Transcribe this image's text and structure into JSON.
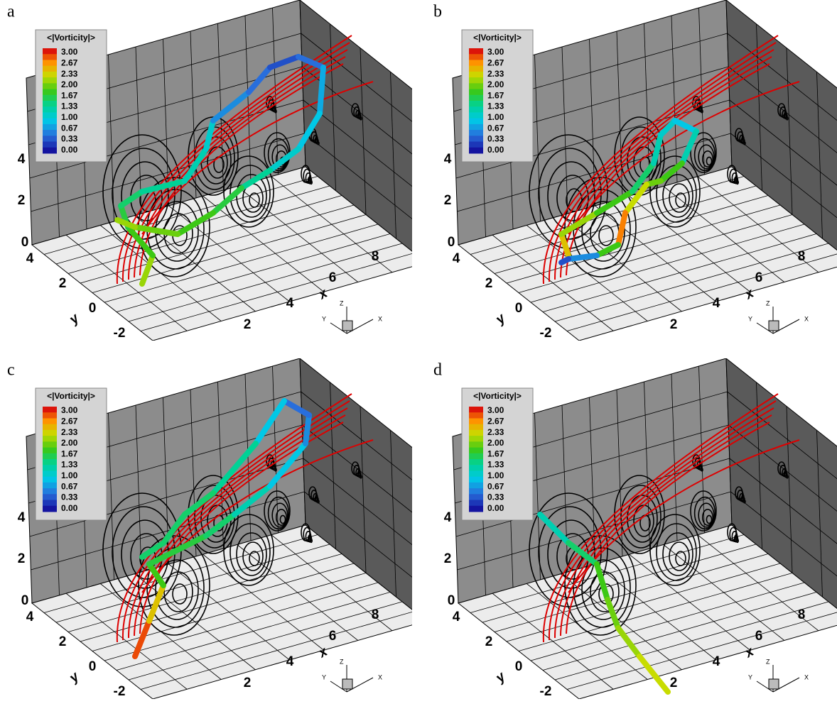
{
  "panels": [
    {
      "label": "a"
    },
    {
      "label": "b"
    },
    {
      "label": "c"
    },
    {
      "label": "d"
    }
  ],
  "legend": {
    "title": "<|Vorticity|>",
    "levels": [
      "3.00",
      "2.67",
      "2.33",
      "2.00",
      "1.67",
      "1.33",
      "1.00",
      "0.67",
      "0.33",
      "0.00"
    ]
  },
  "axes": {
    "x_label": "x",
    "y_label": "y",
    "z_ticks": [
      "0",
      "2",
      "4"
    ],
    "y_ticks": [
      "4",
      "2",
      "0",
      "-2"
    ],
    "x_ticks": [
      "2",
      "4",
      "6",
      "8"
    ]
  },
  "triad": {
    "x": "X",
    "y": "Y",
    "z": "Z"
  }
}
